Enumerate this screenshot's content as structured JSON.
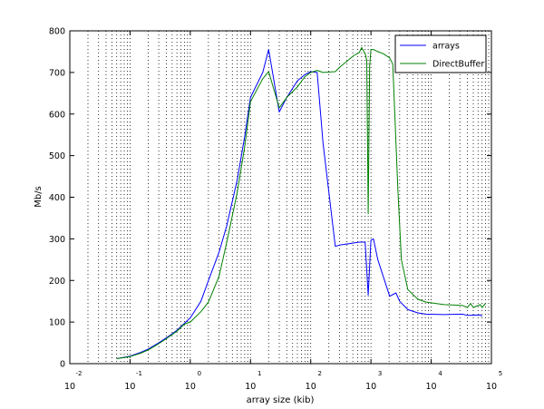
{
  "chart_data": {
    "type": "line",
    "xlabel": "array size (kib)",
    "ylabel": "Mb/s",
    "x_scale": "log",
    "xlim": [
      0.01,
      100000
    ],
    "ylim": [
      0,
      800
    ],
    "x_ticks": [
      {
        "base": "10",
        "exp": "-2",
        "value": 0.01
      },
      {
        "base": "10",
        "exp": "-1",
        "value": 0.1
      },
      {
        "base": "10",
        "exp": "0",
        "value": 1
      },
      {
        "base": "10",
        "exp": "1",
        "value": 10
      },
      {
        "base": "10",
        "exp": "2",
        "value": 100
      },
      {
        "base": "10",
        "exp": "3",
        "value": 1000
      },
      {
        "base": "10",
        "exp": "4",
        "value": 10000
      },
      {
        "base": "10",
        "exp": "5",
        "value": 100000
      }
    ],
    "y_ticks": [
      "0",
      "100",
      "200",
      "300",
      "400",
      "500",
      "600",
      "700",
      "800"
    ],
    "grid": "x-minor dotted",
    "legend_position": "top-right",
    "series": [
      {
        "name": "arrays",
        "color": "#0000ff",
        "points": [
          [
            0.06,
            12
          ],
          [
            0.1,
            18
          ],
          [
            0.15,
            27
          ],
          [
            0.2,
            35
          ],
          [
            0.3,
            50
          ],
          [
            0.4,
            62
          ],
          [
            0.6,
            80
          ],
          [
            0.8,
            97
          ],
          [
            1,
            110
          ],
          [
            1.5,
            150
          ],
          [
            2,
            200
          ],
          [
            3,
            268
          ],
          [
            4,
            330
          ],
          [
            6,
            440
          ],
          [
            8,
            545
          ],
          [
            10,
            640
          ],
          [
            16,
            700
          ],
          [
            20,
            755
          ],
          [
            30,
            605
          ],
          [
            40,
            640
          ],
          [
            60,
            680
          ],
          [
            80,
            695
          ],
          [
            100,
            702
          ],
          [
            128,
            700
          ],
          [
            160,
            530
          ],
          [
            256,
            282
          ],
          [
            300,
            285
          ],
          [
            512,
            290
          ],
          [
            640,
            292
          ],
          [
            800,
            292
          ],
          [
            900,
            165
          ],
          [
            1000,
            297
          ],
          [
            1100,
            300
          ],
          [
            1300,
            250
          ],
          [
            2048,
            162
          ],
          [
            2600,
            170
          ],
          [
            3000,
            150
          ],
          [
            4096,
            130
          ],
          [
            6000,
            122
          ],
          [
            8192,
            119
          ],
          [
            16384,
            118
          ],
          [
            32768,
            119
          ],
          [
            40000,
            116
          ],
          [
            65536,
            117
          ],
          [
            70000,
            114
          ]
        ]
      },
      {
        "name": "DirectBuffer",
        "color": "#008000",
        "points": [
          [
            0.06,
            12
          ],
          [
            0.1,
            17
          ],
          [
            0.15,
            25
          ],
          [
            0.2,
            33
          ],
          [
            0.3,
            48
          ],
          [
            0.4,
            60
          ],
          [
            0.6,
            78
          ],
          [
            0.8,
            95
          ],
          [
            1,
            100
          ],
          [
            1.5,
            125
          ],
          [
            2,
            148
          ],
          [
            3,
            210
          ],
          [
            4,
            290
          ],
          [
            6,
            410
          ],
          [
            8,
            520
          ],
          [
            10,
            630
          ],
          [
            16,
            685
          ],
          [
            20,
            702
          ],
          [
            30,
            615
          ],
          [
            40,
            640
          ],
          [
            60,
            665
          ],
          [
            80,
            690
          ],
          [
            100,
            700
          ],
          [
            128,
            705
          ],
          [
            160,
            700
          ],
          [
            256,
            702
          ],
          [
            300,
            712
          ],
          [
            512,
            740
          ],
          [
            640,
            748
          ],
          [
            700,
            760
          ],
          [
            800,
            745
          ],
          [
            850,
            730
          ],
          [
            900,
            360
          ],
          [
            950,
            715
          ],
          [
            1000,
            755
          ],
          [
            1100,
            755
          ],
          [
            1300,
            750
          ],
          [
            1600,
            745
          ],
          [
            2048,
            735
          ],
          [
            2300,
            720
          ],
          [
            2800,
            420
          ],
          [
            3200,
            250
          ],
          [
            4096,
            178
          ],
          [
            6000,
            155
          ],
          [
            8192,
            148
          ],
          [
            16384,
            142
          ],
          [
            32768,
            140
          ],
          [
            40000,
            135
          ],
          [
            45000,
            145
          ],
          [
            50000,
            135
          ],
          [
            65536,
            142
          ],
          [
            70000,
            135
          ],
          [
            80000,
            145
          ]
        ]
      }
    ]
  }
}
